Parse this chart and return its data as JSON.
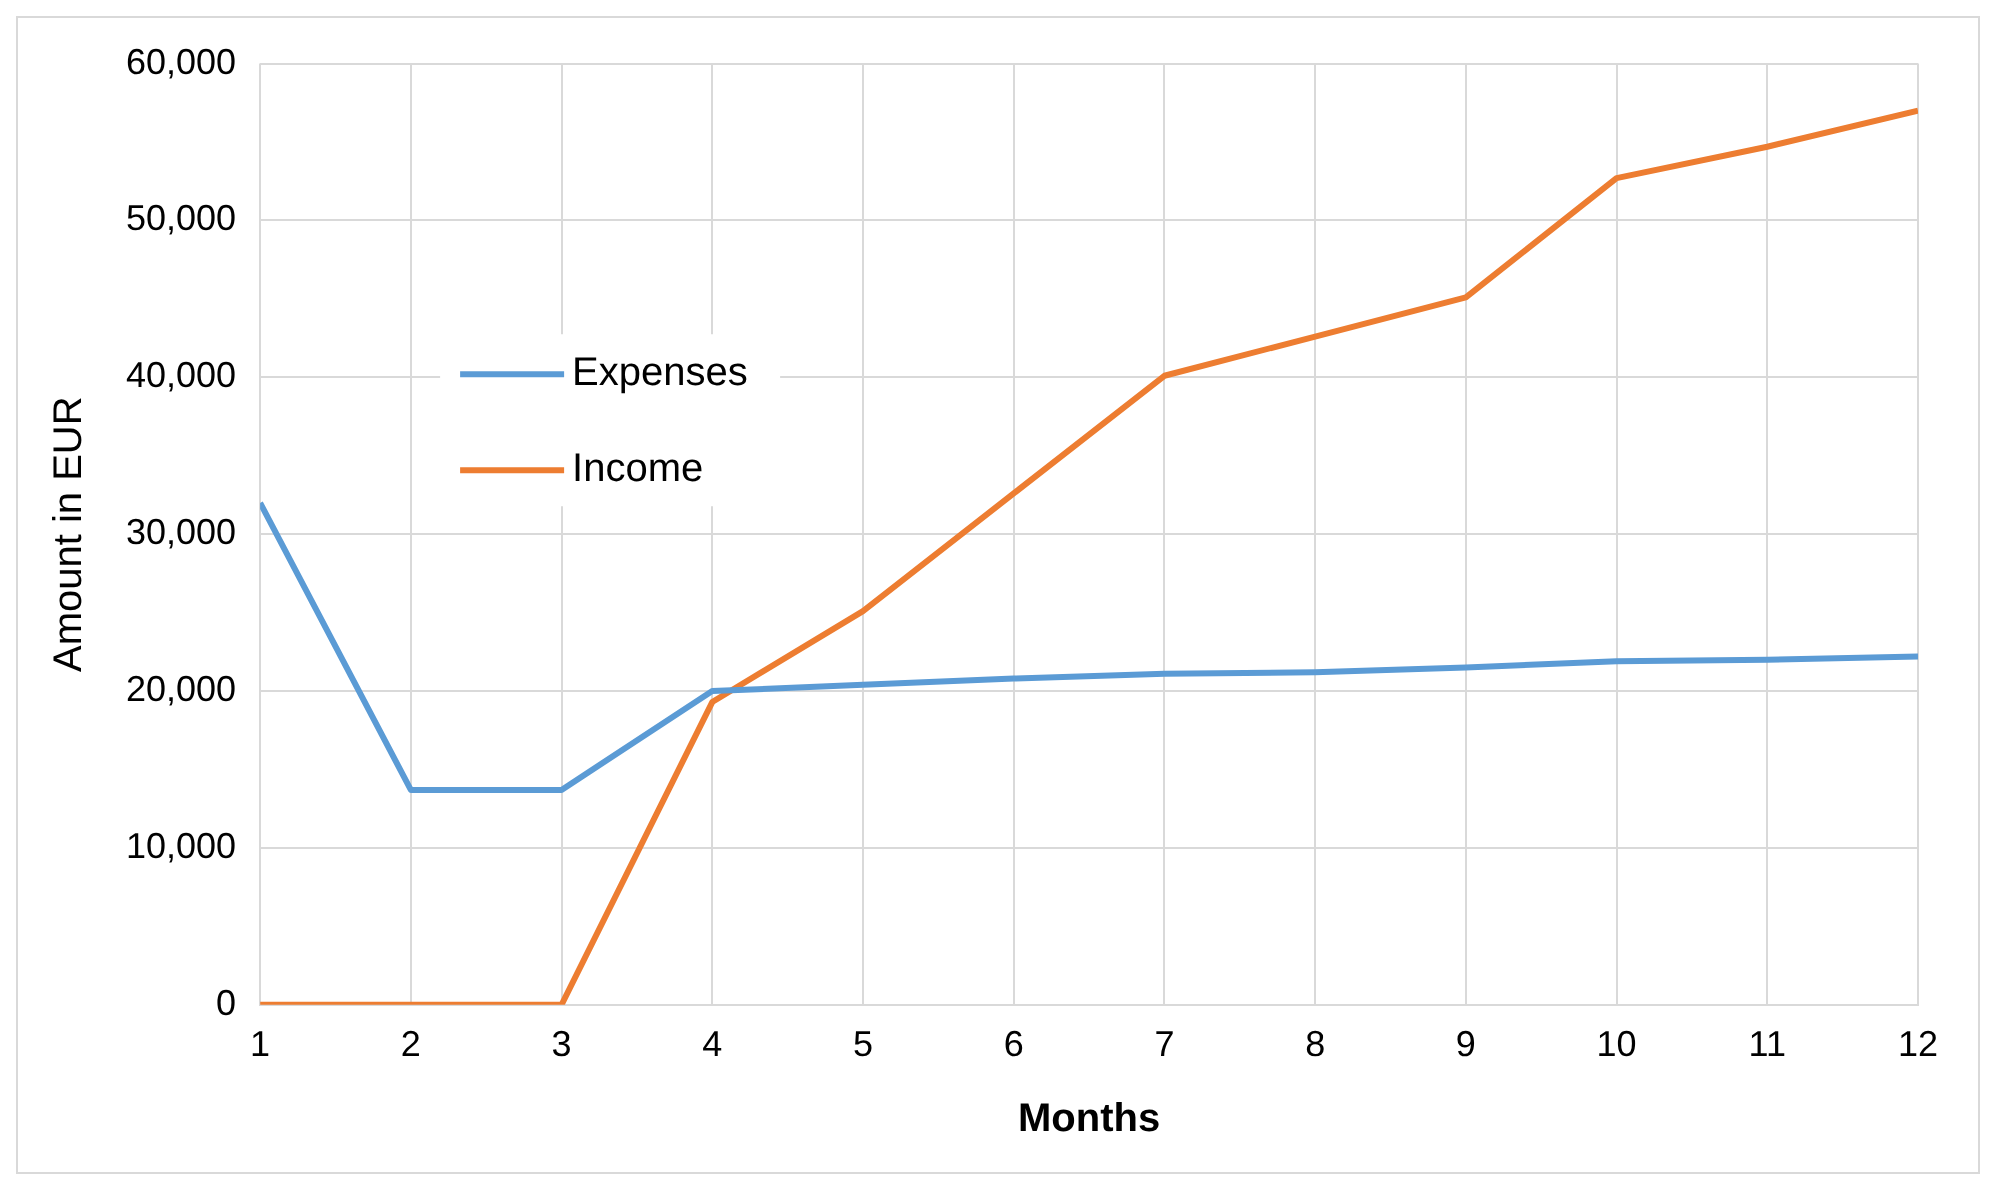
{
  "chart_data": {
    "type": "line",
    "xlabel": "Months",
    "ylabel": "Amount in EUR",
    "x": [
      1,
      2,
      3,
      4,
      5,
      6,
      7,
      8,
      9,
      10,
      11,
      12
    ],
    "xlim": [
      1,
      12
    ],
    "xticks": [
      1,
      2,
      3,
      4,
      5,
      6,
      7,
      8,
      9,
      10,
      11,
      12
    ],
    "ylim": [
      0,
      60000
    ],
    "yticks": [
      {
        "value": 0,
        "label": "0"
      },
      {
        "value": 10000,
        "label": "10,000"
      },
      {
        "value": 20000,
        "label": "20,000"
      },
      {
        "value": 30000,
        "label": "30,000"
      },
      {
        "value": 40000,
        "label": "40,000"
      },
      {
        "value": 50000,
        "label": "50,000"
      },
      {
        "value": 60000,
        "label": "60,000"
      }
    ],
    "grid": true,
    "legend": "left",
    "marker": "none",
    "line_style": "solid",
    "series": [
      {
        "name": "Expenses",
        "color": "#5b9bd5",
        "values": [
          32000,
          13700,
          13700,
          20000,
          20400,
          20800,
          21100,
          21200,
          21500,
          21900,
          22000,
          22200
        ]
      },
      {
        "name": "Income",
        "color": "#ed7d31",
        "values": [
          0,
          0,
          0,
          19300,
          25100,
          32600,
          40100,
          42600,
          45100,
          52700,
          54700,
          57000
        ]
      }
    ]
  }
}
